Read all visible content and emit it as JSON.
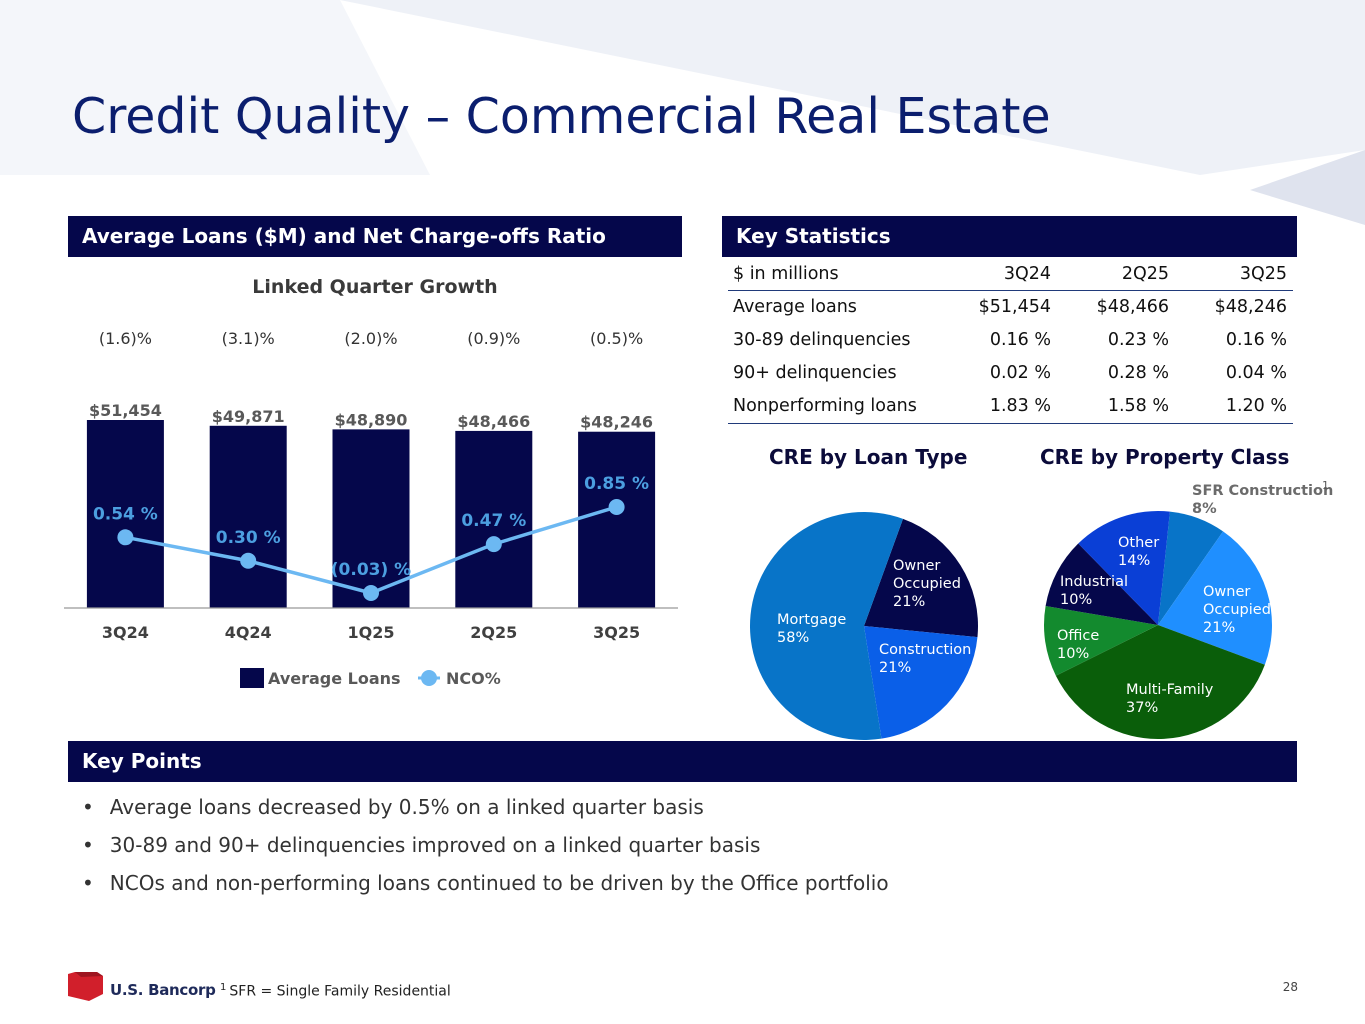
{
  "title": "Credit Quality – Commercial Real Estate",
  "left_panel": {
    "header": "Average Loans ($M) and Net Charge-offs Ratio",
    "subtitle": "Linked Quarter Growth"
  },
  "right_panel": {
    "header": "Key Statistics"
  },
  "stats_table": {
    "columns": [
      "$ in millions",
      "3Q24",
      "2Q25",
      "3Q25"
    ],
    "rows": [
      [
        "Average loans",
        "$51,454",
        "$48,466",
        "$48,246"
      ],
      [
        "30-89 delinquencies",
        "0.16 %",
        "0.23 %",
        "0.16 %"
      ],
      [
        "90+ delinquencies",
        "0.02 %",
        "0.28 %",
        "0.04 %"
      ],
      [
        "Nonperforming loans",
        "1.83 %",
        "1.58 %",
        "1.20 %"
      ]
    ]
  },
  "key_points": {
    "header": "Key Points",
    "items": [
      "Average loans decreased by 0.5% on a linked quarter basis",
      "30-89 and 90+ delinquencies improved on a linked quarter basis",
      "NCOs and non-performing loans continued to be driven by the Office portfolio"
    ]
  },
  "footnote": {
    "marker": "1",
    "text": "SFR = Single Family Residential"
  },
  "page_number": "28",
  "logo": {
    "text": "U.S. Bancorp",
    "color": "#d11f2b"
  },
  "colors": {
    "navy": "#05074b",
    "title_blue": "#0b1e6e",
    "nco_line": "#6cb8f2",
    "nco_label": "#4c9fe0"
  },
  "chart_data": [
    {
      "type": "bar",
      "categories": [
        "3Q24",
        "4Q24",
        "1Q25",
        "2Q25",
        "3Q25"
      ],
      "growth_labels": [
        "(1.6)%",
        "(3.1)%",
        "(2.0)%",
        "(0.9)%",
        "(0.5)%"
      ],
      "series": [
        {
          "name": "Average Loans",
          "type": "bar",
          "values": [
            51454,
            49871,
            48890,
            48466,
            48246
          ],
          "labels": [
            "$51,454",
            "$49,871",
            "$48,890",
            "$48,466",
            "$48,246"
          ],
          "color": "#05074b"
        },
        {
          "name": "NCO%",
          "type": "line",
          "values": [
            0.54,
            0.3,
            -0.03,
            0.47,
            0.85
          ],
          "labels": [
            "0.54 %",
            "0.30 %",
            "(0.03) %",
            "0.47 %",
            "0.85 %"
          ],
          "color": "#6cb8f2"
        }
      ],
      "legend": "bottom"
    },
    {
      "type": "pie",
      "title": "CRE by Loan Type",
      "slices": [
        {
          "lines": [
            "Owner",
            "Occupied",
            "21%"
          ],
          "value": 21,
          "color": "#05074b"
        },
        {
          "lines": [
            "Construction",
            "21%"
          ],
          "value": 21,
          "color": "#0a5fe8"
        },
        {
          "lines": [
            "Mortgage",
            "58%"
          ],
          "value": 58,
          "color": "#0874c8"
        }
      ]
    },
    {
      "type": "pie",
      "title": "CRE by Property Class",
      "slices": [
        {
          "lines": [
            "SFR Construction",
            "8%"
          ],
          "superscript": "1",
          "value": 8,
          "color": "#0874c8"
        },
        {
          "lines": [
            "Owner",
            "Occupied",
            "21%"
          ],
          "value": 21,
          "color": "#1f8fff"
        },
        {
          "lines": [
            "Multi-Family",
            "37%"
          ],
          "value": 37,
          "color": "#0a5e0a"
        },
        {
          "lines": [
            "Office",
            "10%"
          ],
          "value": 10,
          "color": "#138a2e"
        },
        {
          "lines": [
            "Industrial",
            "10%"
          ],
          "value": 10,
          "color": "#05074b"
        },
        {
          "lines": [
            "Other",
            "14%"
          ],
          "value": 14,
          "color": "#0a3fd6"
        }
      ]
    }
  ]
}
